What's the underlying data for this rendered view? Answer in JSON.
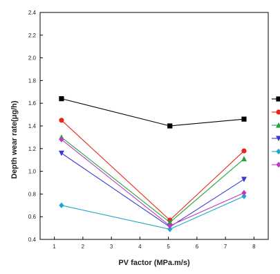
{
  "chart_data": {
    "type": "line",
    "title": "",
    "xlabel": "PV factor (MPa.m/s)",
    "ylabel": "Depth wear rate(μg/h)",
    "xlim": [
      0.5,
      8.5
    ],
    "ylim": [
      0.4,
      2.4
    ],
    "xticks": [
      1,
      2,
      3,
      4,
      5,
      6,
      7,
      8
    ],
    "yticks": [
      0.4,
      0.6,
      0.8,
      1.0,
      1.2,
      1.4,
      1.6,
      1.8,
      2.0,
      2.2,
      2.4
    ],
    "ytick_labels": [
      "0.4",
      "0.6",
      "0.8",
      "1.0",
      "1.2",
      "1.4",
      "1.6",
      "1.8",
      "2.0",
      "2.2",
      "2.4"
    ],
    "grid": false,
    "legend": "right (cropped, labels not visible)",
    "x": [
      1.25,
      5.05,
      7.65
    ],
    "series": [
      {
        "color": "#000000",
        "marker": "square",
        "values": [
          1.64,
          1.4,
          1.46
        ]
      },
      {
        "color": "#e8261b",
        "marker": "circle",
        "values": [
          1.45,
          0.57,
          1.18
        ]
      },
      {
        "color": "#1fa33a",
        "marker": "triangle-up",
        "values": [
          1.3,
          0.55,
          1.11
        ]
      },
      {
        "color": "#3a3ad0",
        "marker": "triangle-down",
        "values": [
          1.16,
          0.51,
          0.93
        ]
      },
      {
        "color": "#19a7c9",
        "marker": "diamond",
        "values": [
          0.7,
          0.49,
          0.78
        ]
      },
      {
        "color": "#c03ac0",
        "marker": "diamond",
        "values": [
          1.28,
          0.52,
          0.81
        ]
      }
    ]
  }
}
